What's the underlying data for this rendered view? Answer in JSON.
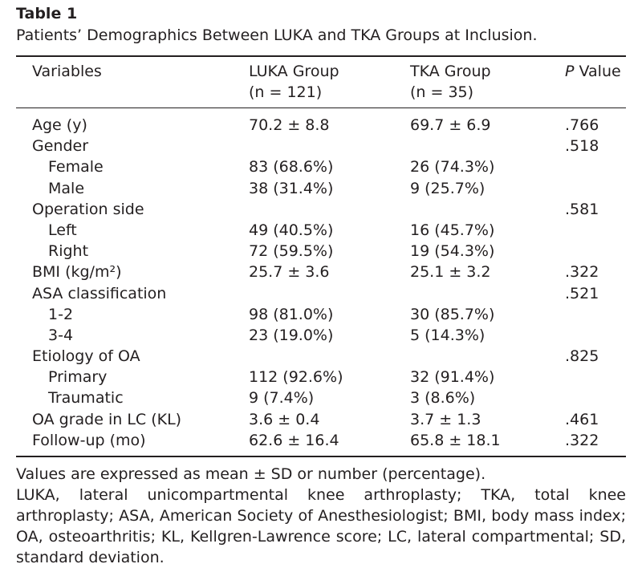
{
  "caption": {
    "label": "Table 1",
    "text": "Patients’ Demographics Between LUKA and TKA Groups at Inclusion."
  },
  "columns": {
    "variables": "Variables",
    "luka": {
      "name": "LUKA Group",
      "n": "(n = 121)"
    },
    "tka": {
      "name": "TKA Group",
      "n": "(n = 35)"
    },
    "p": {
      "italic": "P",
      "rest": " Value"
    }
  },
  "rows": [
    {
      "var": "Age (y)",
      "luka": "70.2 ± 8.8",
      "tka": "69.7 ± 6.9",
      "p": ".766",
      "indent": false
    },
    {
      "var": "Gender",
      "luka": "",
      "tka": "",
      "p": ".518",
      "indent": false
    },
    {
      "var": "Female",
      "luka": "83 (68.6%)",
      "tka": "26 (74.3%)",
      "p": "",
      "indent": true
    },
    {
      "var": "Male",
      "luka": "38 (31.4%)",
      "tka": "9 (25.7%)",
      "p": "",
      "indent": true
    },
    {
      "var": "Operation side",
      "luka": "",
      "tka": "",
      "p": ".581",
      "indent": false
    },
    {
      "var": "Left",
      "luka": "49 (40.5%)",
      "tka": "16 (45.7%)",
      "p": "",
      "indent": true
    },
    {
      "var": "Right",
      "luka": "72 (59.5%)",
      "tka": "19 (54.3%)",
      "p": "",
      "indent": true
    },
    {
      "var": "BMI (kg/m²)",
      "luka": "25.7 ± 3.6",
      "tka": "25.1 ± 3.2",
      "p": ".322",
      "indent": false
    },
    {
      "var": "ASA classification",
      "luka": "",
      "tka": "",
      "p": ".521",
      "indent": false
    },
    {
      "var": "1-2",
      "luka": "98 (81.0%)",
      "tka": "30 (85.7%)",
      "p": "",
      "indent": true
    },
    {
      "var": "3-4",
      "luka": "23 (19.0%)",
      "tka": "5 (14.3%)",
      "p": "",
      "indent": true
    },
    {
      "var": "Etiology of OA",
      "luka": "",
      "tka": "",
      "p": ".825",
      "indent": false
    },
    {
      "var": "Primary",
      "luka": "112 (92.6%)",
      "tka": "32 (91.4%)",
      "p": "",
      "indent": true
    },
    {
      "var": "Traumatic",
      "luka": "9 (7.4%)",
      "tka": "3 (8.6%)",
      "p": "",
      "indent": true
    },
    {
      "var": "OA grade in LC (KL)",
      "luka": "3.6 ± 0.4",
      "tka": "3.7 ± 1.3",
      "p": ".461",
      "indent": false
    },
    {
      "var": "Follow-up (mo)",
      "luka": "62.6 ± 16.4",
      "tka": "65.8 ± 18.1",
      "p": ".322",
      "indent": false
    }
  ],
  "footnotes": {
    "values": "Values are expressed as mean ± SD or number (percentage).",
    "abbreviations": "LUKA, lateral unicompartmental knee arthroplasty; TKA, total knee arthroplasty; ASA, American Society of Anesthesiologist; BMI, body mass index; OA, osteoarthritis; KL, Kellgren-Lawrence score; LC, lateral compartmental; SD, standard deviation."
  }
}
